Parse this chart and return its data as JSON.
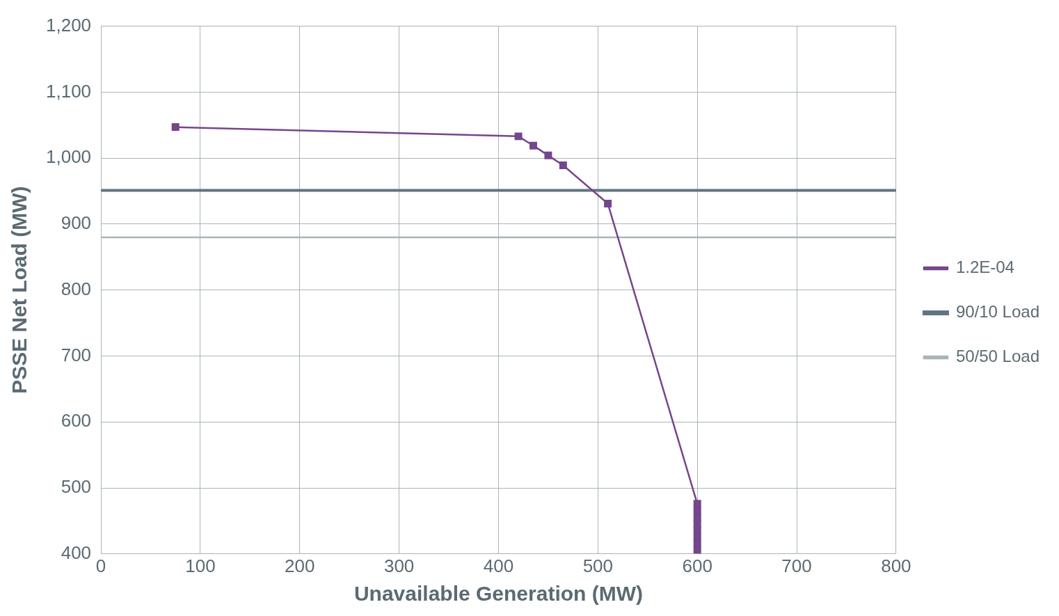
{
  "chart_data": {
    "type": "line",
    "xlabel": "Unavailable Generation (MW)",
    "ylabel": "PSSE Net Load (MW)",
    "x": [
      75,
      420,
      435,
      450,
      465,
      510,
      600,
      600,
      600,
      600,
      600,
      600,
      600,
      600
    ],
    "series": [
      {
        "name": "1.2E-04",
        "color": "#74468c",
        "values": [
          1047,
          1033,
          1019,
          1004,
          989,
          931,
          476,
          466,
          456,
          446,
          436,
          426,
          416,
          406
        ]
      }
    ],
    "ref_lines": [
      {
        "axis": "y",
        "value": 951,
        "label": "90/10 Load",
        "color": "#5f7580"
      },
      {
        "axis": "y",
        "value": 880,
        "label": "50/50 Load",
        "color": "#a9b4b8"
      }
    ],
    "xlim": [
      0,
      800
    ],
    "xticks": [
      0,
      100,
      200,
      300,
      400,
      500,
      600,
      700,
      800
    ],
    "ylim": [
      400,
      1200
    ],
    "yticks": [
      400,
      500,
      600,
      700,
      800,
      900,
      {
        "value": 1000,
        "label": "1,000"
      },
      {
        "value": 1100,
        "label": "1,100"
      },
      {
        "value": 1200,
        "label": "1,200"
      }
    ],
    "grid": true,
    "legend": "right",
    "marker": "square",
    "line_style": "solid"
  }
}
